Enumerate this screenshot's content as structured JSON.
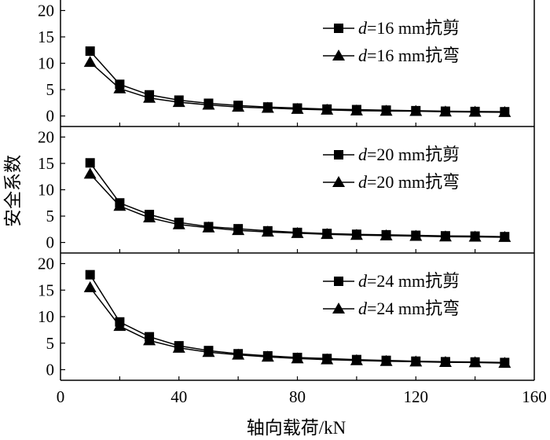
{
  "chart_data": {
    "type": "line",
    "xlabel": "轴向载荷/kN",
    "ylabel": "安全系数",
    "xlim": [
      0,
      160
    ],
    "xticks": [
      0,
      40,
      80,
      120,
      160
    ],
    "x": [
      10,
      20,
      30,
      40,
      50,
      60,
      70,
      80,
      90,
      100,
      110,
      120,
      130,
      140,
      150
    ],
    "grid": false,
    "legend_position": "top-right",
    "panels": [
      {
        "ylim": [
          -2,
          22
        ],
        "yticks": [
          0,
          5,
          10,
          15,
          20
        ],
        "series": [
          {
            "name": "d=16 mm抗剪",
            "var": "d",
            "rest": "=16 mm抗剪",
            "marker": "square",
            "values": [
              12.3,
              6.0,
              4.0,
              3.0,
              2.4,
              2.0,
              1.7,
              1.5,
              1.3,
              1.2,
              1.1,
              1.0,
              0.9,
              0.85,
              0.8
            ]
          },
          {
            "name": "d=16 mm抗弯",
            "var": "d",
            "rest": "=16 mm抗弯",
            "marker": "triangle",
            "values": [
              10.2,
              5.2,
              3.4,
              2.6,
              2.1,
              1.7,
              1.5,
              1.3,
              1.15,
              1.0,
              0.95,
              0.9,
              0.8,
              0.75,
              0.7
            ]
          }
        ]
      },
      {
        "ylim": [
          -2,
          22
        ],
        "yticks": [
          0,
          5,
          10,
          15,
          20
        ],
        "series": [
          {
            "name": "d=20 mm抗剪",
            "var": "d",
            "rest": "=20 mm抗剪",
            "marker": "square",
            "values": [
              15.1,
              7.5,
              5.3,
              3.8,
              3.0,
              2.6,
              2.2,
              1.9,
              1.7,
              1.55,
              1.45,
              1.35,
              1.25,
              1.2,
              1.1
            ]
          },
          {
            "name": "d=20 mm抗弯",
            "var": "d",
            "rest": "=20 mm抗弯",
            "marker": "triangle",
            "values": [
              13.0,
              6.9,
              4.7,
              3.4,
              2.8,
              2.3,
              2.0,
              1.75,
              1.55,
              1.4,
              1.3,
              1.2,
              1.1,
              1.05,
              1.0
            ]
          }
        ]
      },
      {
        "ylim": [
          -2,
          22
        ],
        "yticks": [
          0,
          5,
          10,
          15,
          20
        ],
        "series": [
          {
            "name": "d=24 mm抗剪",
            "var": "d",
            "rest": "=24 mm抗剪",
            "marker": "square",
            "values": [
              17.9,
              9.0,
              6.2,
              4.5,
              3.6,
              3.0,
              2.6,
              2.3,
              2.1,
              1.9,
              1.75,
              1.6,
              1.5,
              1.45,
              1.35
            ]
          },
          {
            "name": "d=24 mm抗弯",
            "var": "d",
            "rest": "=24 mm抗弯",
            "marker": "triangle",
            "values": [
              15.5,
              8.2,
              5.5,
              4.1,
              3.3,
              2.8,
              2.4,
              2.1,
              1.9,
              1.75,
              1.6,
              1.5,
              1.4,
              1.35,
              1.25
            ]
          }
        ]
      }
    ]
  }
}
